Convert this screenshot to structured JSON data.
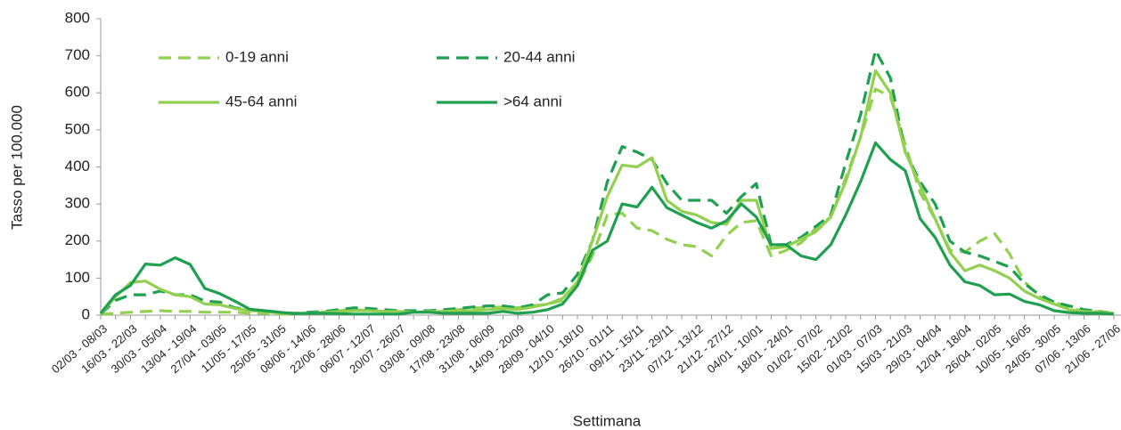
{
  "chart_data": {
    "type": "line",
    "y_label": "Tasso per 100.000",
    "x_label": "Settimana",
    "categories": [
      "02/03 - 08/03",
      null,
      "16/03 - 22/03",
      null,
      "30/03 - 05/04",
      null,
      "13/04 - 19/04",
      null,
      "27/04 - 03/05",
      null,
      "11/05 - 17/05",
      null,
      "25/05 - 31/05",
      null,
      "08/06 - 14/06",
      null,
      "22/06 - 28/06",
      null,
      "06/07 - 12/07",
      null,
      "20/07 - 26/07",
      null,
      "03/08 - 09/08",
      null,
      "17/08 - 23/08",
      null,
      "31/08 - 06/09",
      null,
      "14/09 - 20/09",
      null,
      "28/09 - 04/10",
      null,
      "12/10 - 18/10",
      null,
      "26/10 - 01/11",
      null,
      "09/11 - 15/11",
      null,
      "23/11 - 29/11",
      null,
      "07/12 - 13/12",
      null,
      "21/12 - 27/12",
      null,
      "04/01 - 10/01",
      null,
      "18/01 - 24/01",
      null,
      "01/02 - 07/02",
      null,
      "15/02 - 21/02",
      null,
      "01/03 - 07/03",
      null,
      "15/03 - 21/03",
      null,
      "29/03 - 04/04",
      null,
      "12/04 - 18/04",
      null,
      "26/04 - 02/05",
      null,
      "10/05 - 16/05",
      null,
      "24/05 - 30/05",
      null,
      "07/06 - 13/06",
      null,
      "21/06 - 27/06"
    ],
    "series": [
      {
        "name": "0-19 anni",
        "color": "#92d050",
        "dashed": true,
        "values": [
          2,
          5,
          8,
          10,
          12,
          10,
          10,
          8,
          8,
          8,
          5,
          5,
          3,
          3,
          5,
          8,
          12,
          15,
          12,
          10,
          8,
          8,
          8,
          10,
          15,
          20,
          20,
          22,
          20,
          25,
          30,
          40,
          80,
          160,
          270,
          275,
          235,
          228,
          205,
          190,
          185,
          160,
          215,
          250,
          255,
          160,
          175,
          195,
          235,
          265,
          370,
          480,
          610,
          590,
          460,
          330,
          260,
          175,
          170,
          200,
          220,
          165,
          90,
          50,
          35,
          20,
          10,
          10,
          5
        ]
      },
      {
        "name": "20-44 anni",
        "color": "#1fa050",
        "dashed": true,
        "values": [
          3,
          40,
          55,
          55,
          65,
          55,
          55,
          38,
          35,
          20,
          15,
          12,
          8,
          5,
          8,
          10,
          15,
          20,
          18,
          15,
          12,
          12,
          12,
          15,
          18,
          22,
          25,
          25,
          20,
          28,
          55,
          60,
          110,
          200,
          360,
          455,
          440,
          420,
          355,
          310,
          310,
          310,
          275,
          320,
          355,
          190,
          190,
          210,
          240,
          270,
          410,
          540,
          715,
          640,
          440,
          360,
          300,
          200,
          170,
          160,
          145,
          130,
          85,
          55,
          35,
          25,
          15,
          10,
          5
        ]
      },
      {
        "name": "45-64 anni",
        "color": "#92d050",
        "dashed": false,
        "values": [
          3,
          50,
          88,
          92,
          70,
          55,
          50,
          30,
          28,
          18,
          12,
          10,
          5,
          5,
          5,
          8,
          10,
          12,
          12,
          10,
          10,
          8,
          10,
          10,
          12,
          12,
          15,
          18,
          15,
          22,
          30,
          45,
          90,
          200,
          320,
          405,
          400,
          425,
          310,
          280,
          270,
          250,
          245,
          310,
          310,
          180,
          185,
          205,
          225,
          265,
          360,
          480,
          660,
          600,
          440,
          350,
          260,
          170,
          120,
          135,
          120,
          100,
          65,
          45,
          30,
          15,
          10,
          8,
          5
        ]
      },
      {
        "name": ">64 anni",
        "color": "#1fa050",
        "dashed": false,
        "values": [
          5,
          55,
          80,
          138,
          135,
          155,
          137,
          72,
          58,
          38,
          16,
          12,
          8,
          4,
          5,
          5,
          4,
          3,
          3,
          3,
          3,
          8,
          8,
          5,
          5,
          5,
          5,
          10,
          5,
          8,
          15,
          30,
          80,
          175,
          200,
          300,
          292,
          345,
          290,
          270,
          250,
          235,
          255,
          300,
          265,
          190,
          190,
          160,
          150,
          190,
          270,
          360,
          465,
          420,
          390,
          260,
          210,
          135,
          90,
          80,
          55,
          57,
          37,
          28,
          12,
          7,
          5,
          5,
          3
        ]
      }
    ],
    "ylim": [
      0,
      800
    ],
    "yticks": [
      0,
      100,
      200,
      300,
      400,
      500,
      600,
      700,
      800
    ],
    "grid": false
  }
}
